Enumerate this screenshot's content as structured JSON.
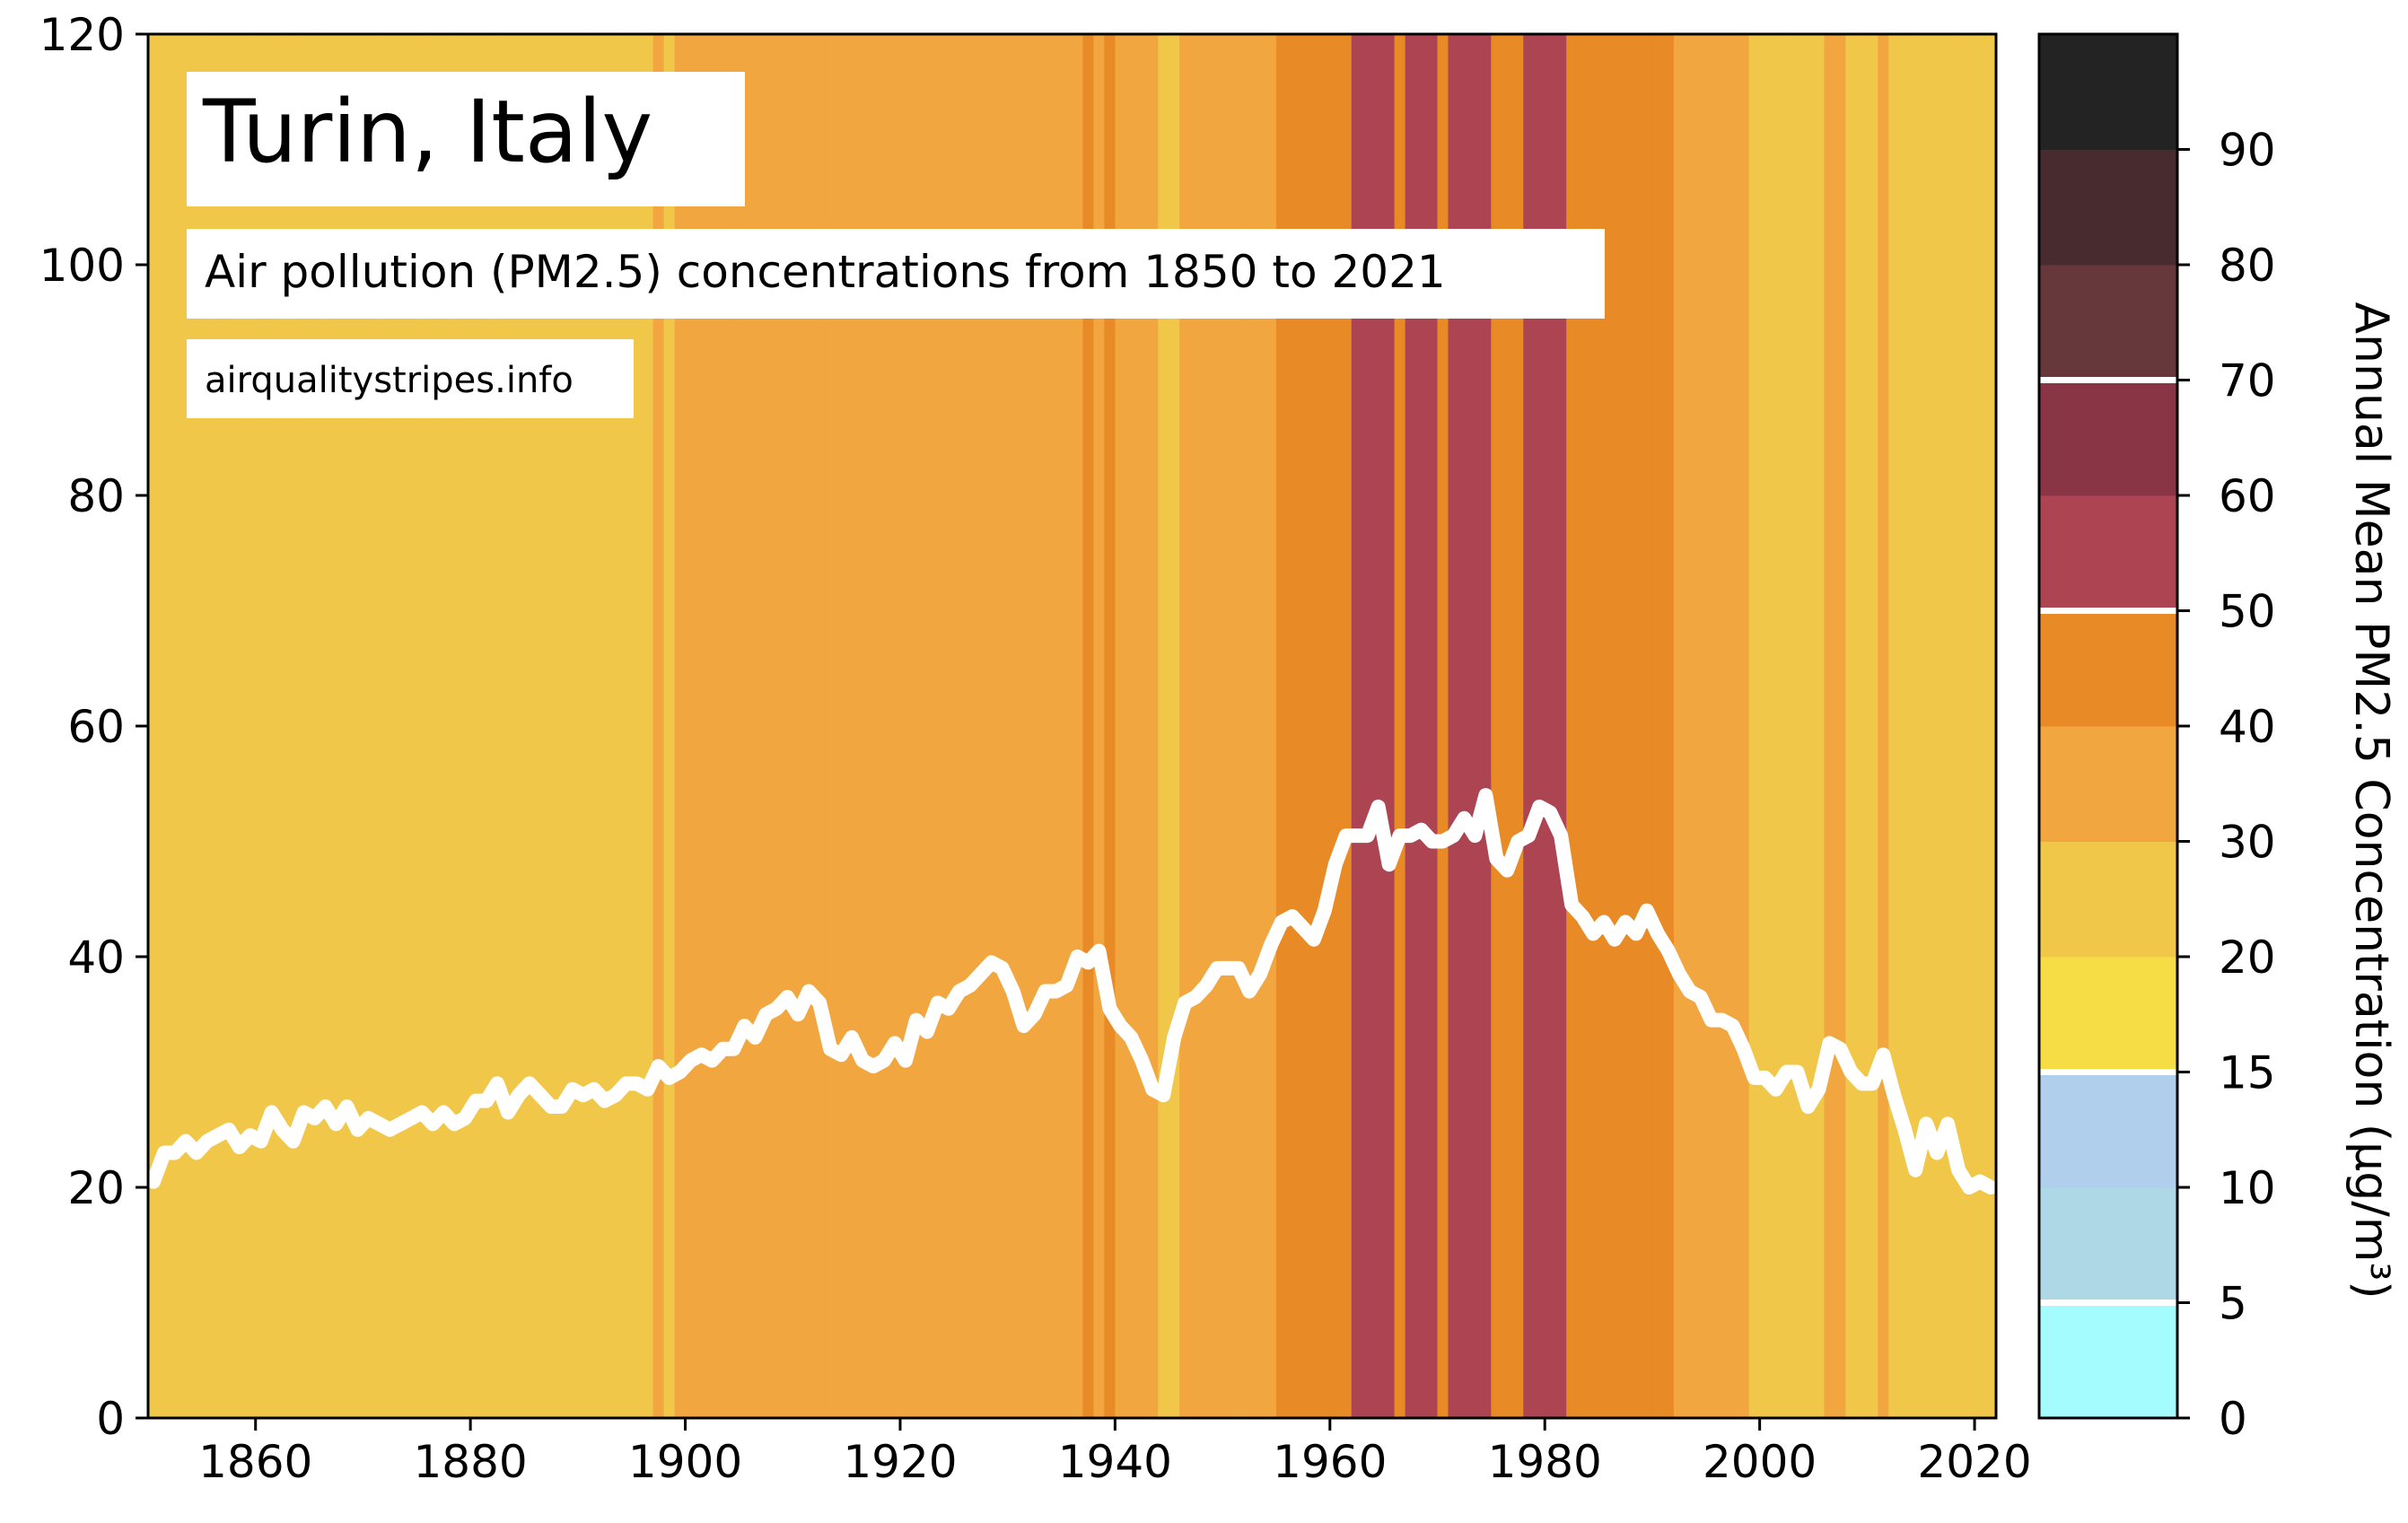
{
  "chart_data": {
    "type": "line",
    "title": "Turin, Italy",
    "subtitle": "Air pollution (PM2.5) concentrations from 1850 to 2021",
    "source": "airqualitystripes.info",
    "xlim": [
      1850,
      2022
    ],
    "ylim": [
      0,
      120
    ],
    "xticks": [
      1860,
      1880,
      1900,
      1920,
      1940,
      1960,
      1980,
      2000,
      2020
    ],
    "yticks": [
      0,
      20,
      40,
      60,
      80,
      100,
      120
    ],
    "grid": false,
    "line_color": "#ffffff",
    "x": [
      1850,
      1851,
      1852,
      1853,
      1854,
      1855,
      1856,
      1857,
      1858,
      1859,
      1860,
      1861,
      1862,
      1863,
      1864,
      1865,
      1866,
      1867,
      1868,
      1869,
      1870,
      1871,
      1872,
      1873,
      1874,
      1875,
      1876,
      1877,
      1878,
      1879,
      1880,
      1881,
      1882,
      1883,
      1884,
      1885,
      1886,
      1887,
      1888,
      1889,
      1890,
      1891,
      1892,
      1893,
      1894,
      1895,
      1896,
      1897,
      1898,
      1899,
      1900,
      1901,
      1902,
      1903,
      1904,
      1905,
      1906,
      1907,
      1908,
      1909,
      1910,
      1911,
      1912,
      1913,
      1914,
      1915,
      1916,
      1917,
      1918,
      1919,
      1920,
      1921,
      1922,
      1923,
      1924,
      1925,
      1926,
      1927,
      1928,
      1929,
      1930,
      1931,
      1932,
      1933,
      1934,
      1935,
      1936,
      1937,
      1938,
      1939,
      1940,
      1941,
      1942,
      1943,
      1944,
      1945,
      1946,
      1947,
      1948,
      1949,
      1950,
      1951,
      1952,
      1953,
      1954,
      1955,
      1956,
      1957,
      1958,
      1959,
      1960,
      1961,
      1962,
      1963,
      1964,
      1965,
      1966,
      1967,
      1968,
      1969,
      1970,
      1971,
      1972,
      1973,
      1974,
      1975,
      1976,
      1977,
      1978,
      1979,
      1980,
      1981,
      1982,
      1983,
      1984,
      1985,
      1986,
      1987,
      1988,
      1989,
      1990,
      1991,
      1992,
      1993,
      1994,
      1995,
      1996,
      1997,
      1998,
      1999,
      2000,
      2001,
      2002,
      2003,
      2004,
      2005,
      2006,
      2007,
      2008,
      2009,
      2010,
      2011,
      2012,
      2013,
      2014,
      2015,
      2016,
      2017,
      2018,
      2019,
      2020,
      2021
    ],
    "y": [
      20.5,
      23.0,
      23.0,
      24.0,
      23.0,
      24.0,
      24.5,
      25.0,
      23.5,
      24.5,
      24.0,
      26.5,
      25.0,
      24.0,
      26.5,
      26.0,
      27.0,
      25.5,
      27.0,
      25.0,
      26.0,
      25.5,
      25.0,
      25.5,
      26.0,
      26.5,
      25.5,
      26.5,
      25.5,
      26.0,
      27.5,
      27.5,
      29.0,
      26.5,
      28.0,
      29.0,
      28.0,
      27.0,
      27.0,
      28.5,
      28.0,
      28.5,
      27.5,
      28.0,
      29.0,
      29.0,
      28.5,
      30.5,
      29.5,
      30.0,
      31.0,
      31.5,
      31.0,
      32.0,
      32.0,
      34.0,
      33.0,
      35.0,
      35.5,
      36.5,
      35.0,
      37.0,
      36.0,
      32.0,
      31.5,
      33.0,
      31.0,
      30.5,
      31.0,
      32.5,
      31.0,
      34.5,
      33.5,
      36.0,
      35.5,
      37.0,
      37.5,
      38.5,
      39.5,
      39.0,
      37.0,
      34.0,
      35.0,
      37.0,
      37.0,
      37.5,
      40.0,
      39.5,
      40.5,
      35.5,
      34.0,
      33.0,
      31.0,
      28.5,
      28.0,
      33.0,
      36.0,
      36.5,
      37.5,
      39.0,
      39.0,
      39.0,
      37.0,
      38.5,
      41.0,
      43.0,
      43.5,
      42.5,
      41.5,
      44.0,
      48.0,
      50.5,
      50.5,
      50.5,
      53.0,
      48.0,
      50.5,
      50.5,
      51.0,
      50.0,
      50.0,
      50.5,
      52.0,
      50.5,
      54.0,
      48.5,
      47.5,
      50.0,
      50.5,
      53.0,
      52.5,
      50.5,
      44.5,
      43.5,
      42.0,
      43.0,
      41.5,
      43.0,
      42.0,
      44.0,
      42.0,
      40.5,
      38.5,
      37.0,
      36.5,
      34.5,
      34.5,
      34.0,
      32.0,
      29.5,
      29.5,
      28.5,
      30.0,
      30.0,
      27.0,
      28.5,
      32.5,
      32.0,
      30.0,
      29.0,
      29.0,
      31.5,
      28.0,
      25.0,
      21.5,
      25.5,
      23.0,
      25.5,
      21.5,
      20.0,
      20.5,
      20.0
    ],
    "stripe_colors_by_year": [
      "#f1c74a",
      "#f1c74a",
      "#f1c74a",
      "#f1c74a",
      "#f1c74a",
      "#f1c74a",
      "#f1c74a",
      "#f1c74a",
      "#f1c74a",
      "#f1c74a",
      "#f1c74a",
      "#f1c74a",
      "#f1c74a",
      "#f1c74a",
      "#f1c74a",
      "#f1c74a",
      "#f1c74a",
      "#f1c74a",
      "#f1c74a",
      "#f1c74a",
      "#f1c74a",
      "#f1c74a",
      "#f1c74a",
      "#f1c74a",
      "#f1c74a",
      "#f1c74a",
      "#f1c74a",
      "#f1c74a",
      "#f1c74a",
      "#f1c74a",
      "#f1c74a",
      "#f1c74a",
      "#f1c74a",
      "#f1c74a",
      "#f1c74a",
      "#f1c74a",
      "#f1c74a",
      "#f1c74a",
      "#f1c74a",
      "#f1c74a",
      "#f1c74a",
      "#f1c74a",
      "#f1c74a",
      "#f1c74a",
      "#f1c74a",
      "#f1c74a",
      "#f1c74a",
      "#f1a640",
      "#f1c74a",
      "#f1a640",
      "#f1a640",
      "#f1a640",
      "#f1a640",
      "#f1a640",
      "#f1a640",
      "#f1a640",
      "#f1a640",
      "#f1a640",
      "#f1a640",
      "#f1a640",
      "#f1a640",
      "#f1a640",
      "#f1a640",
      "#f1a640",
      "#f1a640",
      "#f1a640",
      "#f1a640",
      "#f1a640",
      "#f1a640",
      "#f1a640",
      "#f1a640",
      "#f1a640",
      "#f1a640",
      "#f1a640",
      "#f1a640",
      "#f1a640",
      "#f1a640",
      "#f1a640",
      "#f1a640",
      "#f1a640",
      "#f1a640",
      "#f1a640",
      "#f1a640",
      "#f1a640",
      "#f1a640",
      "#f1a640",
      "#f1a640",
      "#e88a25",
      "#f1a640",
      "#e88a25",
      "#f1a640",
      "#f1a640",
      "#f1a640",
      "#f1a640",
      "#f1c74a",
      "#f1c74a",
      "#f1a640",
      "#f1a640",
      "#f1a640",
      "#f1a640",
      "#f1a640",
      "#f1a640",
      "#f1a640",
      "#f1a640",
      "#f1a640",
      "#e88a25",
      "#e88a25",
      "#e88a25",
      "#e88a25",
      "#e88a25",
      "#e88a25",
      "#e88a25",
      "#ad4452",
      "#ad4452",
      "#ad4452",
      "#ad4452",
      "#e88a25",
      "#ad4452",
      "#ad4452",
      "#ad4452",
      "#e88a25",
      "#ad4452",
      "#ad4452",
      "#ad4452",
      "#ad4452",
      "#e88a25",
      "#e88a25",
      "#e88a25",
      "#ad4452",
      "#ad4452",
      "#ad4452",
      "#ad4452",
      "#e88a25",
      "#e88a25",
      "#e88a25",
      "#e88a25",
      "#e88a25",
      "#e88a25",
      "#e88a25",
      "#e88a25",
      "#e88a25",
      "#e88a25",
      "#f1a640",
      "#f1a640",
      "#f1a640",
      "#f1a640",
      "#f1a640",
      "#f1a640",
      "#f1a640",
      "#f1c74a",
      "#f1c74a",
      "#f1c74a",
      "#f1c74a",
      "#f1c74a",
      "#f1c74a",
      "#f1c74a",
      "#f1a640",
      "#f1a640",
      "#f1c74a",
      "#f1c74a",
      "#f1c74a",
      "#f1a640",
      "#f1c74a",
      "#f1c74a",
      "#f1c74a",
      "#f1c74a",
      "#f1c74a",
      "#f1c74a",
      "#f1c74a",
      "#f1c74a",
      "#f1c74a",
      "#f1c74a"
    ],
    "colorbar": {
      "label": "Annual Mean PM2.5 Concentration (μg/m³)",
      "tick_labels": [
        "0",
        "5",
        "10",
        "15",
        "20",
        "30",
        "40",
        "50",
        "60",
        "70",
        "80",
        "90"
      ],
      "white_lines_after_bin": [
        1,
        3,
        7,
        9,
        13
      ],
      "bins": [
        {
          "color": "#a5fcfe"
        },
        {
          "color": "#afd8e6"
        },
        {
          "color": "#b0cfec"
        },
        {
          "color": "#f6dd46"
        },
        {
          "color": "#f1c74a"
        },
        {
          "color": "#f1a640"
        },
        {
          "color": "#e88a25"
        },
        {
          "color": "#ad4452"
        },
        {
          "color": "#8a3545"
        },
        {
          "color": "#67383b"
        },
        {
          "color": "#482b2f"
        },
        {
          "color": "#232323"
        }
      ]
    }
  }
}
